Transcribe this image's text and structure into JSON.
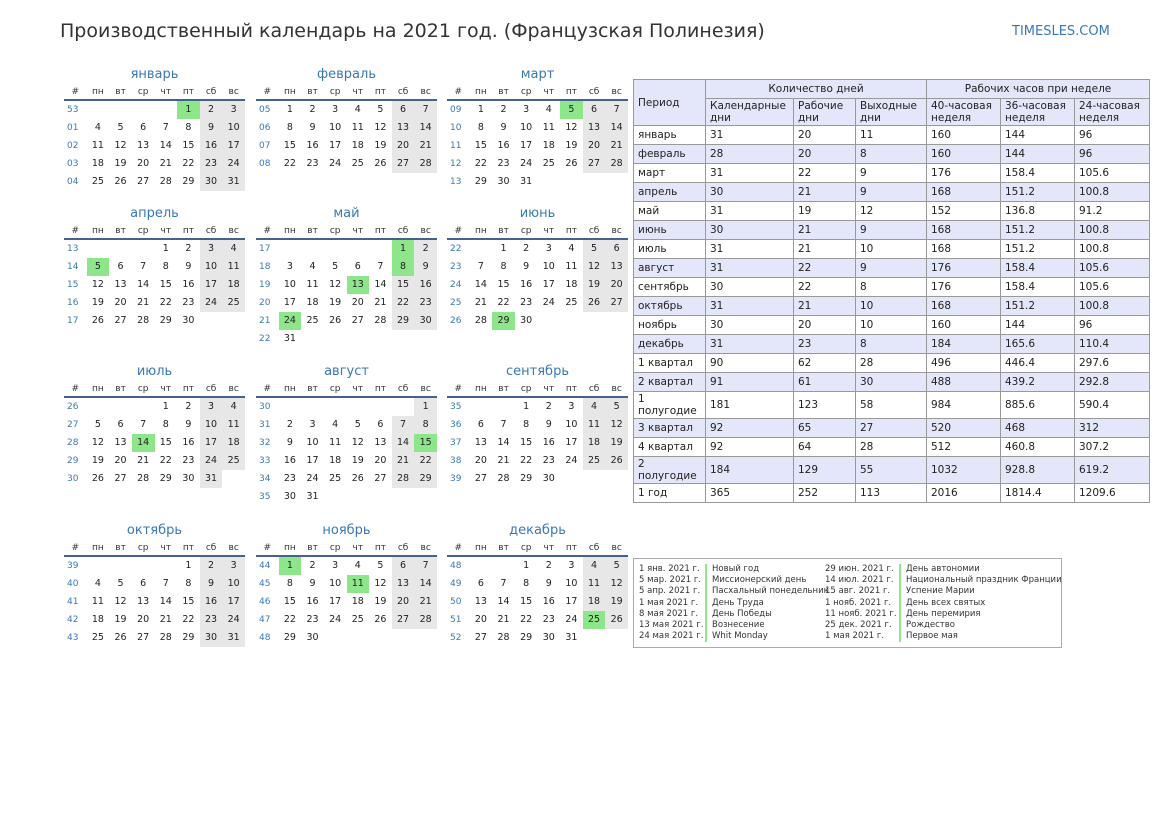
{
  "page_title": "Производственный календарь на 2021 год. (Французская Полинезия)",
  "site_link": "TIMESLES.COM",
  "weekday_headers": [
    "#",
    "пн",
    "вт",
    "ср",
    "чт",
    "пт",
    "сб",
    "вс"
  ],
  "months": [
    {
      "name": "январь",
      "rows": [
        [
          "53",
          "",
          "",
          "",
          "",
          "1",
          "2",
          "3"
        ],
        [
          "01",
          "4",
          "5",
          "6",
          "7",
          "8",
          "9",
          "10"
        ],
        [
          "02",
          "11",
          "12",
          "13",
          "14",
          "15",
          "16",
          "17"
        ],
        [
          "03",
          "18",
          "19",
          "20",
          "21",
          "22",
          "23",
          "24"
        ],
        [
          "04",
          "25",
          "26",
          "27",
          "28",
          "29",
          "30",
          "31"
        ]
      ],
      "holidays": [
        "1"
      ]
    },
    {
      "name": "февраль",
      "rows": [
        [
          "05",
          "1",
          "2",
          "3",
          "4",
          "5",
          "6",
          "7"
        ],
        [
          "06",
          "8",
          "9",
          "10",
          "11",
          "12",
          "13",
          "14"
        ],
        [
          "07",
          "15",
          "16",
          "17",
          "18",
          "19",
          "20",
          "21"
        ],
        [
          "08",
          "22",
          "23",
          "24",
          "25",
          "26",
          "27",
          "28"
        ]
      ],
      "holidays": []
    },
    {
      "name": "март",
      "rows": [
        [
          "09",
          "1",
          "2",
          "3",
          "4",
          "5",
          "6",
          "7"
        ],
        [
          "10",
          "8",
          "9",
          "10",
          "11",
          "12",
          "13",
          "14"
        ],
        [
          "11",
          "15",
          "16",
          "17",
          "18",
          "19",
          "20",
          "21"
        ],
        [
          "12",
          "22",
          "23",
          "24",
          "25",
          "26",
          "27",
          "28"
        ],
        [
          "13",
          "29",
          "30",
          "31",
          "",
          "",
          "",
          ""
        ]
      ],
      "holidays": [
        "5"
      ]
    },
    {
      "name": "апрель",
      "rows": [
        [
          "13",
          "",
          "",
          "",
          "1",
          "2",
          "3",
          "4"
        ],
        [
          "14",
          "5",
          "6",
          "7",
          "8",
          "9",
          "10",
          "11"
        ],
        [
          "15",
          "12",
          "13",
          "14",
          "15",
          "16",
          "17",
          "18"
        ],
        [
          "16",
          "19",
          "20",
          "21",
          "22",
          "23",
          "24",
          "25"
        ],
        [
          "17",
          "26",
          "27",
          "28",
          "29",
          "30",
          "",
          ""
        ]
      ],
      "holidays": [
        "5"
      ]
    },
    {
      "name": "май",
      "rows": [
        [
          "17",
          "",
          "",
          "",
          "",
          "",
          "1",
          "2"
        ],
        [
          "18",
          "3",
          "4",
          "5",
          "6",
          "7",
          "8",
          "9"
        ],
        [
          "19",
          "10",
          "11",
          "12",
          "13",
          "14",
          "15",
          "16"
        ],
        [
          "20",
          "17",
          "18",
          "19",
          "20",
          "21",
          "22",
          "23"
        ],
        [
          "21",
          "24",
          "25",
          "26",
          "27",
          "28",
          "29",
          "30"
        ],
        [
          "22",
          "31",
          "",
          "",
          "",
          "",
          "",
          ""
        ]
      ],
      "holidays": [
        "1",
        "8",
        "13",
        "24"
      ]
    },
    {
      "name": "июнь",
      "rows": [
        [
          "22",
          "",
          "1",
          "2",
          "3",
          "4",
          "5",
          "6"
        ],
        [
          "23",
          "7",
          "8",
          "9",
          "10",
          "11",
          "12",
          "13"
        ],
        [
          "24",
          "14",
          "15",
          "16",
          "17",
          "18",
          "19",
          "20"
        ],
        [
          "25",
          "21",
          "22",
          "23",
          "24",
          "25",
          "26",
          "27"
        ],
        [
          "26",
          "28",
          "29",
          "30",
          "",
          "",
          "",
          ""
        ]
      ],
      "holidays": [
        "29"
      ]
    },
    {
      "name": "июль",
      "rows": [
        [
          "26",
          "",
          "",
          "",
          "1",
          "2",
          "3",
          "4"
        ],
        [
          "27",
          "5",
          "6",
          "7",
          "8",
          "9",
          "10",
          "11"
        ],
        [
          "28",
          "12",
          "13",
          "14",
          "15",
          "16",
          "17",
          "18"
        ],
        [
          "29",
          "19",
          "20",
          "21",
          "22",
          "23",
          "24",
          "25"
        ],
        [
          "30",
          "26",
          "27",
          "28",
          "29",
          "30",
          "31",
          ""
        ]
      ],
      "holidays": [
        "14"
      ]
    },
    {
      "name": "август",
      "rows": [
        [
          "30",
          "",
          "",
          "",
          "",
          "",
          "",
          "1"
        ],
        [
          "31",
          "2",
          "3",
          "4",
          "5",
          "6",
          "7",
          "8"
        ],
        [
          "32",
          "9",
          "10",
          "11",
          "12",
          "13",
          "14",
          "15"
        ],
        [
          "33",
          "16",
          "17",
          "18",
          "19",
          "20",
          "21",
          "22"
        ],
        [
          "34",
          "23",
          "24",
          "25",
          "26",
          "27",
          "28",
          "29"
        ],
        [
          "35",
          "30",
          "31",
          "",
          "",
          "",
          "",
          ""
        ]
      ],
      "holidays": [
        "15"
      ]
    },
    {
      "name": "сентябрь",
      "rows": [
        [
          "35",
          "",
          "",
          "1",
          "2",
          "3",
          "4",
          "5"
        ],
        [
          "36",
          "6",
          "7",
          "8",
          "9",
          "10",
          "11",
          "12"
        ],
        [
          "37",
          "13",
          "14",
          "15",
          "16",
          "17",
          "18",
          "19"
        ],
        [
          "38",
          "20",
          "21",
          "22",
          "23",
          "24",
          "25",
          "26"
        ],
        [
          "39",
          "27",
          "28",
          "29",
          "30",
          "",
          "",
          ""
        ]
      ],
      "holidays": []
    },
    {
      "name": "октябрь",
      "rows": [
        [
          "39",
          "",
          "",
          "",
          "",
          "1",
          "2",
          "3"
        ],
        [
          "40",
          "4",
          "5",
          "6",
          "7",
          "8",
          "9",
          "10"
        ],
        [
          "41",
          "11",
          "12",
          "13",
          "14",
          "15",
          "16",
          "17"
        ],
        [
          "42",
          "18",
          "19",
          "20",
          "21",
          "22",
          "23",
          "24"
        ],
        [
          "43",
          "25",
          "26",
          "27",
          "28",
          "29",
          "30",
          "31"
        ]
      ],
      "holidays": []
    },
    {
      "name": "ноябрь",
      "rows": [
        [
          "44",
          "1",
          "2",
          "3",
          "4",
          "5",
          "6",
          "7"
        ],
        [
          "45",
          "8",
          "9",
          "10",
          "11",
          "12",
          "13",
          "14"
        ],
        [
          "46",
          "15",
          "16",
          "17",
          "18",
          "19",
          "20",
          "21"
        ],
        [
          "47",
          "22",
          "23",
          "24",
          "25",
          "26",
          "27",
          "28"
        ],
        [
          "48",
          "29",
          "30",
          "",
          "",
          "",
          "",
          ""
        ]
      ],
      "holidays": [
        "1",
        "11"
      ]
    },
    {
      "name": "декабрь",
      "rows": [
        [
          "48",
          "",
          "",
          "1",
          "2",
          "3",
          "4",
          "5"
        ],
        [
          "49",
          "6",
          "7",
          "8",
          "9",
          "10",
          "11",
          "12"
        ],
        [
          "50",
          "13",
          "14",
          "15",
          "16",
          "17",
          "18",
          "19"
        ],
        [
          "51",
          "20",
          "21",
          "22",
          "23",
          "24",
          "25",
          "26"
        ],
        [
          "52",
          "27",
          "28",
          "29",
          "30",
          "31",
          "",
          ""
        ]
      ],
      "holidays": [
        "25"
      ]
    }
  ],
  "stats": {
    "period_header": "Период",
    "days_group": "Количество дней",
    "hours_group": "Рабочих часов при неделе",
    "subheaders": [
      "Календарные дни",
      "Рабочие дни",
      "Выходные дни",
      "40-часовая неделя",
      "36-часовая неделя",
      "24-часовая неделя"
    ],
    "rows": [
      [
        "январь",
        "31",
        "20",
        "11",
        "160",
        "144",
        "96"
      ],
      [
        "февраль",
        "28",
        "20",
        "8",
        "160",
        "144",
        "96"
      ],
      [
        "март",
        "31",
        "22",
        "9",
        "176",
        "158.4",
        "105.6"
      ],
      [
        "апрель",
        "30",
        "21",
        "9",
        "168",
        "151.2",
        "100.8"
      ],
      [
        "май",
        "31",
        "19",
        "12",
        "152",
        "136.8",
        "91.2"
      ],
      [
        "июнь",
        "30",
        "21",
        "9",
        "168",
        "151.2",
        "100.8"
      ],
      [
        "июль",
        "31",
        "21",
        "10",
        "168",
        "151.2",
        "100.8"
      ],
      [
        "август",
        "31",
        "22",
        "9",
        "176",
        "158.4",
        "105.6"
      ],
      [
        "сентябрь",
        "30",
        "22",
        "8",
        "176",
        "158.4",
        "105.6"
      ],
      [
        "октябрь",
        "31",
        "21",
        "10",
        "168",
        "151.2",
        "100.8"
      ],
      [
        "ноябрь",
        "30",
        "20",
        "10",
        "160",
        "144",
        "96"
      ],
      [
        "декабрь",
        "31",
        "23",
        "8",
        "184",
        "165.6",
        "110.4"
      ],
      [
        "1 квартал",
        "90",
        "62",
        "28",
        "496",
        "446.4",
        "297.6"
      ],
      [
        "2 квартал",
        "91",
        "61",
        "30",
        "488",
        "439.2",
        "292.8"
      ],
      [
        "1 полугодие",
        "181",
        "123",
        "58",
        "984",
        "885.6",
        "590.4"
      ],
      [
        "3 квартал",
        "92",
        "65",
        "27",
        "520",
        "468",
        "312"
      ],
      [
        "4 квартал",
        "92",
        "64",
        "28",
        "512",
        "460.8",
        "307.2"
      ],
      [
        "2 полугодие",
        "184",
        "129",
        "55",
        "1032",
        "928.8",
        "619.2"
      ],
      [
        "1 год",
        "365",
        "252",
        "113",
        "2016",
        "1814.4",
        "1209.6"
      ]
    ]
  },
  "holiday_list": [
    [
      {
        "date": "1 янв. 2021 г.",
        "name": "Новый год"
      },
      {
        "date": "5 мар. 2021 г.",
        "name": "Миссионерский день"
      },
      {
        "date": "5 апр. 2021 г.",
        "name": "Пасхальный понедельник"
      },
      {
        "date": "1 мая 2021 г.",
        "name": "День Труда"
      },
      {
        "date": "8 мая 2021 г.",
        "name": "День Победы"
      },
      {
        "date": "13 мая 2021 г.",
        "name": "Вознесение"
      },
      {
        "date": "24 мая 2021 г.",
        "name": "Whit Monday"
      }
    ],
    [
      {
        "date": "29 июн. 2021 г.",
        "name": "День автономии"
      },
      {
        "date": "14 июл. 2021 г.",
        "name": "Национальный праздник Франции"
      },
      {
        "date": "15 авг. 2021 г.",
        "name": "Успение Марии"
      },
      {
        "date": "1 нояб. 2021 г.",
        "name": "День всех святых"
      },
      {
        "date": "11 нояб. 2021 г.",
        "name": "День перемирия"
      },
      {
        "date": "25 дек. 2021 г.",
        "name": "Рождество"
      },
      {
        "date": "1 мая 2021 г.",
        "name": "Первое мая"
      }
    ]
  ],
  "colors": {
    "accent": "#3a78b4",
    "holiday": "#8ee68a",
    "weekend": "#e7e7e7",
    "table_header": "#e4e6fa"
  }
}
